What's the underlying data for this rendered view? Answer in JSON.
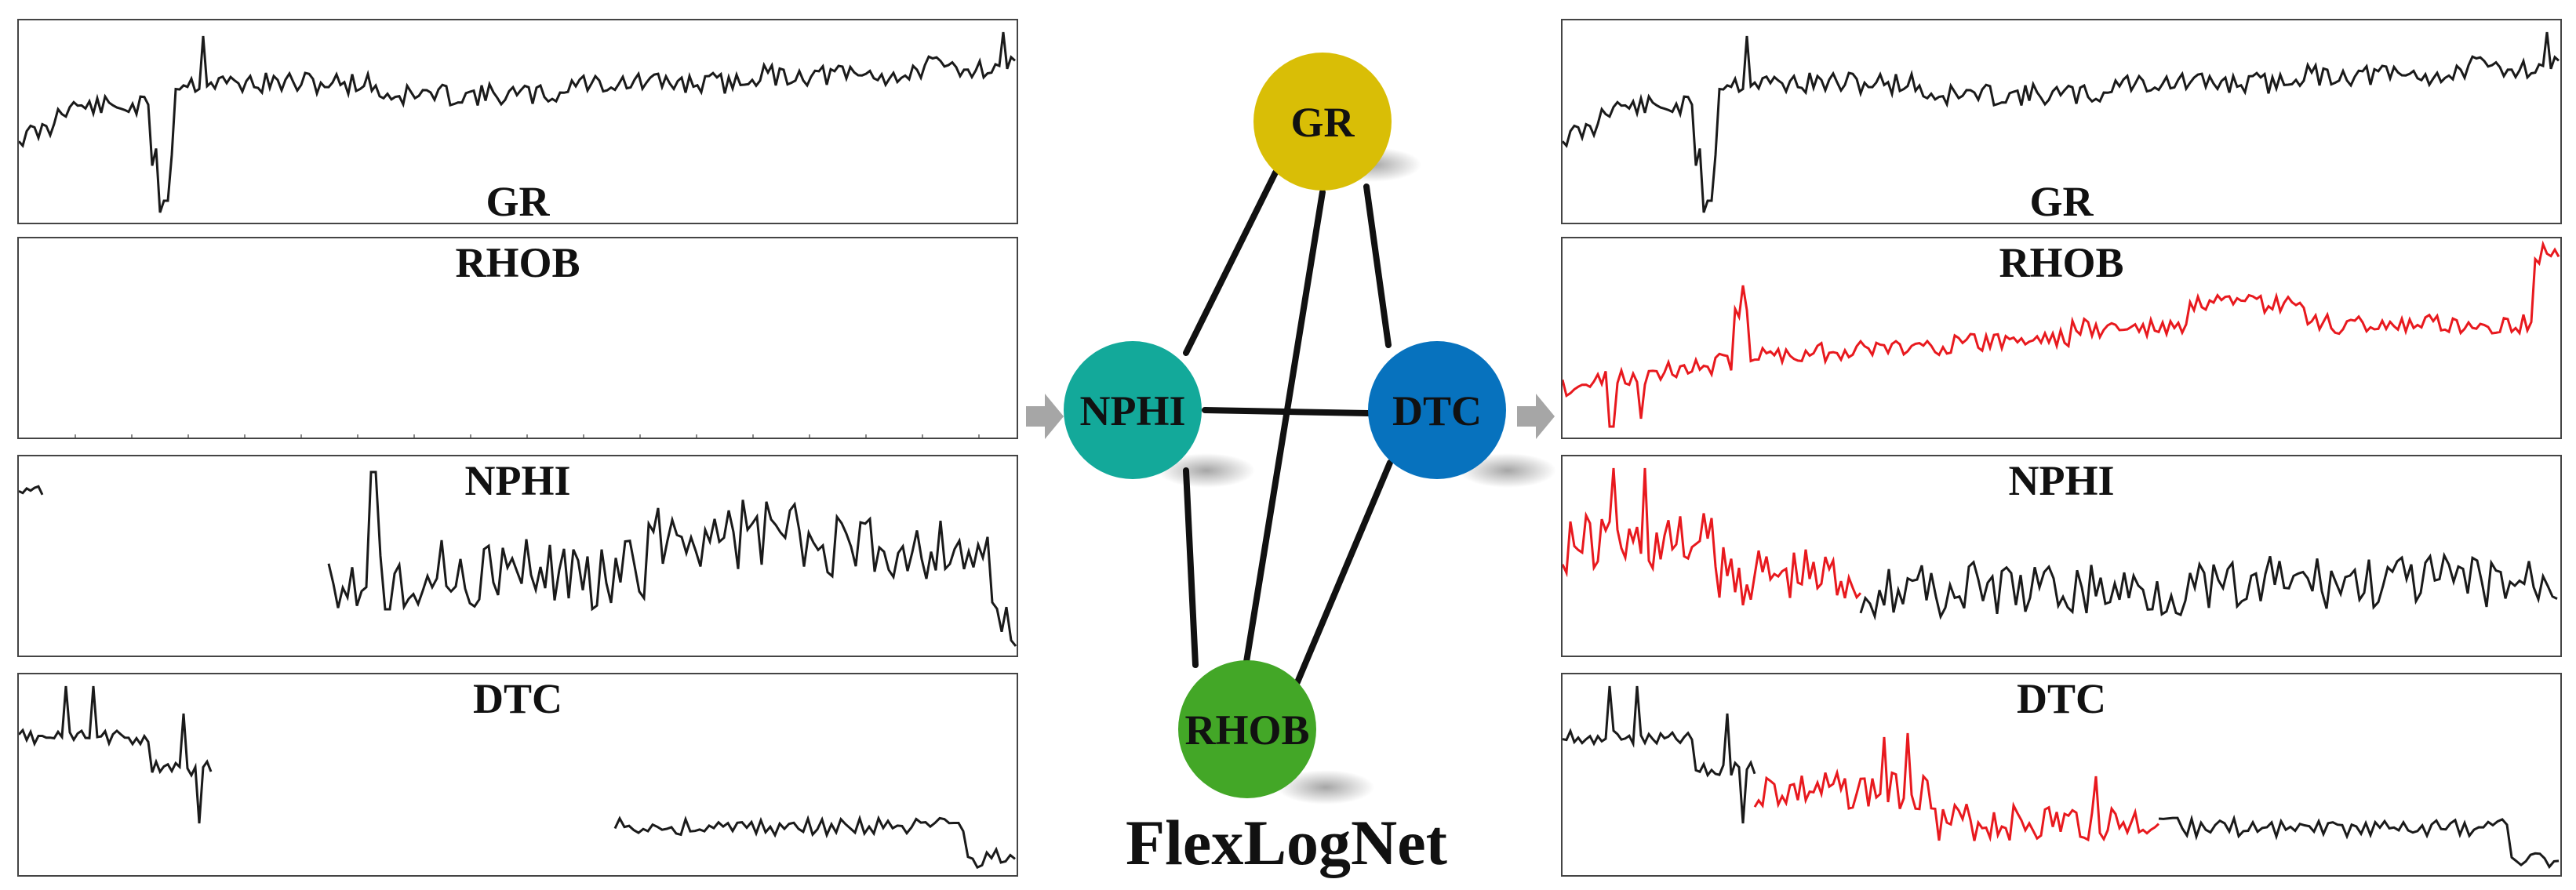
{
  "title": "FlexLogNet",
  "logs": [
    "GR",
    "RHOB",
    "NPHI",
    "DTC"
  ],
  "input_panels": [
    {
      "label": "GR",
      "label_position": "bottom"
    },
    {
      "label": "RHOB",
      "label_position": "top"
    },
    {
      "label": "NPHI",
      "label_position": "top"
    },
    {
      "label": "DTC",
      "label_position": "top"
    }
  ],
  "output_panels": [
    {
      "label": "GR",
      "label_position": "bottom"
    },
    {
      "label": "RHOB",
      "label_position": "top"
    },
    {
      "label": "NPHI",
      "label_position": "top"
    },
    {
      "label": "DTC",
      "label_position": "top"
    }
  ],
  "graph": {
    "nodes": [
      {
        "id": "GR",
        "label": "GR",
        "color": "#D9BE06"
      },
      {
        "id": "NPHI",
        "label": "NPHI",
        "color": "#13A99A"
      },
      {
        "id": "DTC",
        "label": "DTC",
        "color": "#0772BE"
      },
      {
        "id": "RHOB",
        "label": "RHOB",
        "color": "#43A727"
      }
    ],
    "edges": [
      [
        "GR",
        "NPHI"
      ],
      [
        "GR",
        "DTC"
      ],
      [
        "GR",
        "RHOB"
      ],
      [
        "NPHI",
        "DTC"
      ],
      [
        "NPHI",
        "RHOB"
      ],
      [
        "DTC",
        "RHOB"
      ]
    ]
  },
  "colors": {
    "observed": "#1a1a1a",
    "imputed": "#e8191e",
    "arrow": "#a6a6a6"
  }
}
